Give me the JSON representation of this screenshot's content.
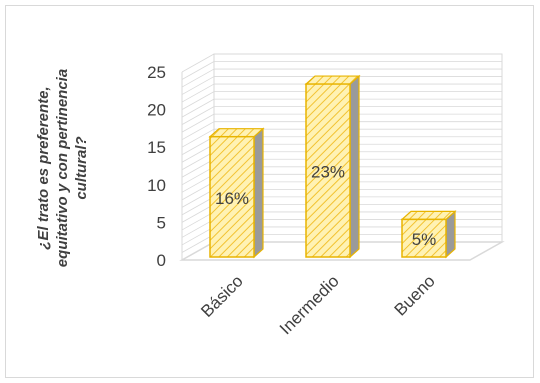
{
  "chart_data": {
    "type": "bar",
    "style": "3d-column",
    "ylabel": "¿El trato es preferente, equitativo y con pertinencia cultural?",
    "categories": [
      "Básico",
      "Inermedio",
      "Bueno"
    ],
    "values": [
      16,
      23,
      5
    ],
    "data_labels": [
      "16%",
      "23%",
      "5%"
    ],
    "ylim": [
      0,
      25
    ],
    "yticks": [
      0,
      5,
      10,
      15,
      20,
      25
    ],
    "grid": true,
    "legend": "none",
    "colors": {
      "bar_fill": "#fff2b3",
      "bar_hatch": "#f2c230",
      "bar_edge": "#e8b400",
      "bar_side": "#9a9a9a",
      "grid": "#d9d9d9",
      "floor": "#d9d9d9",
      "text": "#404040"
    }
  }
}
